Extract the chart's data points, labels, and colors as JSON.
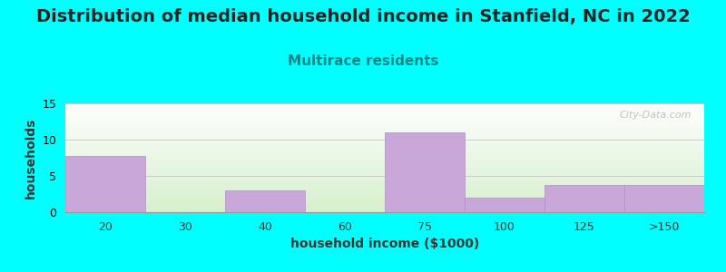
{
  "title": "Distribution of median household income in Stanfield, NC in 2022",
  "subtitle": "Multirace residents",
  "xlabel": "household income ($1000)",
  "ylabel": "households",
  "background_color": "#00FFFF",
  "plot_bg_top_left": "#D8EED0",
  "plot_bg_bottom_right": "#FFFFFF",
  "bar_color": "#C8A8D8",
  "bar_edge_color": "#B090C0",
  "categories": [
    "20",
    "30",
    "40",
    "60",
    "75",
    "100",
    "125",
    ">150"
  ],
  "values": [
    7.8,
    0,
    3,
    0,
    11,
    2,
    3.8,
    3.8
  ],
  "ylim": [
    0,
    15
  ],
  "yticks": [
    0,
    5,
    10,
    15
  ],
  "title_fontsize": 14,
  "subtitle_fontsize": 11,
  "subtitle_color": "#008888",
  "axis_label_fontsize": 10,
  "tick_fontsize": 9,
  "watermark": "City-Data.com",
  "grid_color": "#CCCCCC",
  "title_color": "#222222"
}
